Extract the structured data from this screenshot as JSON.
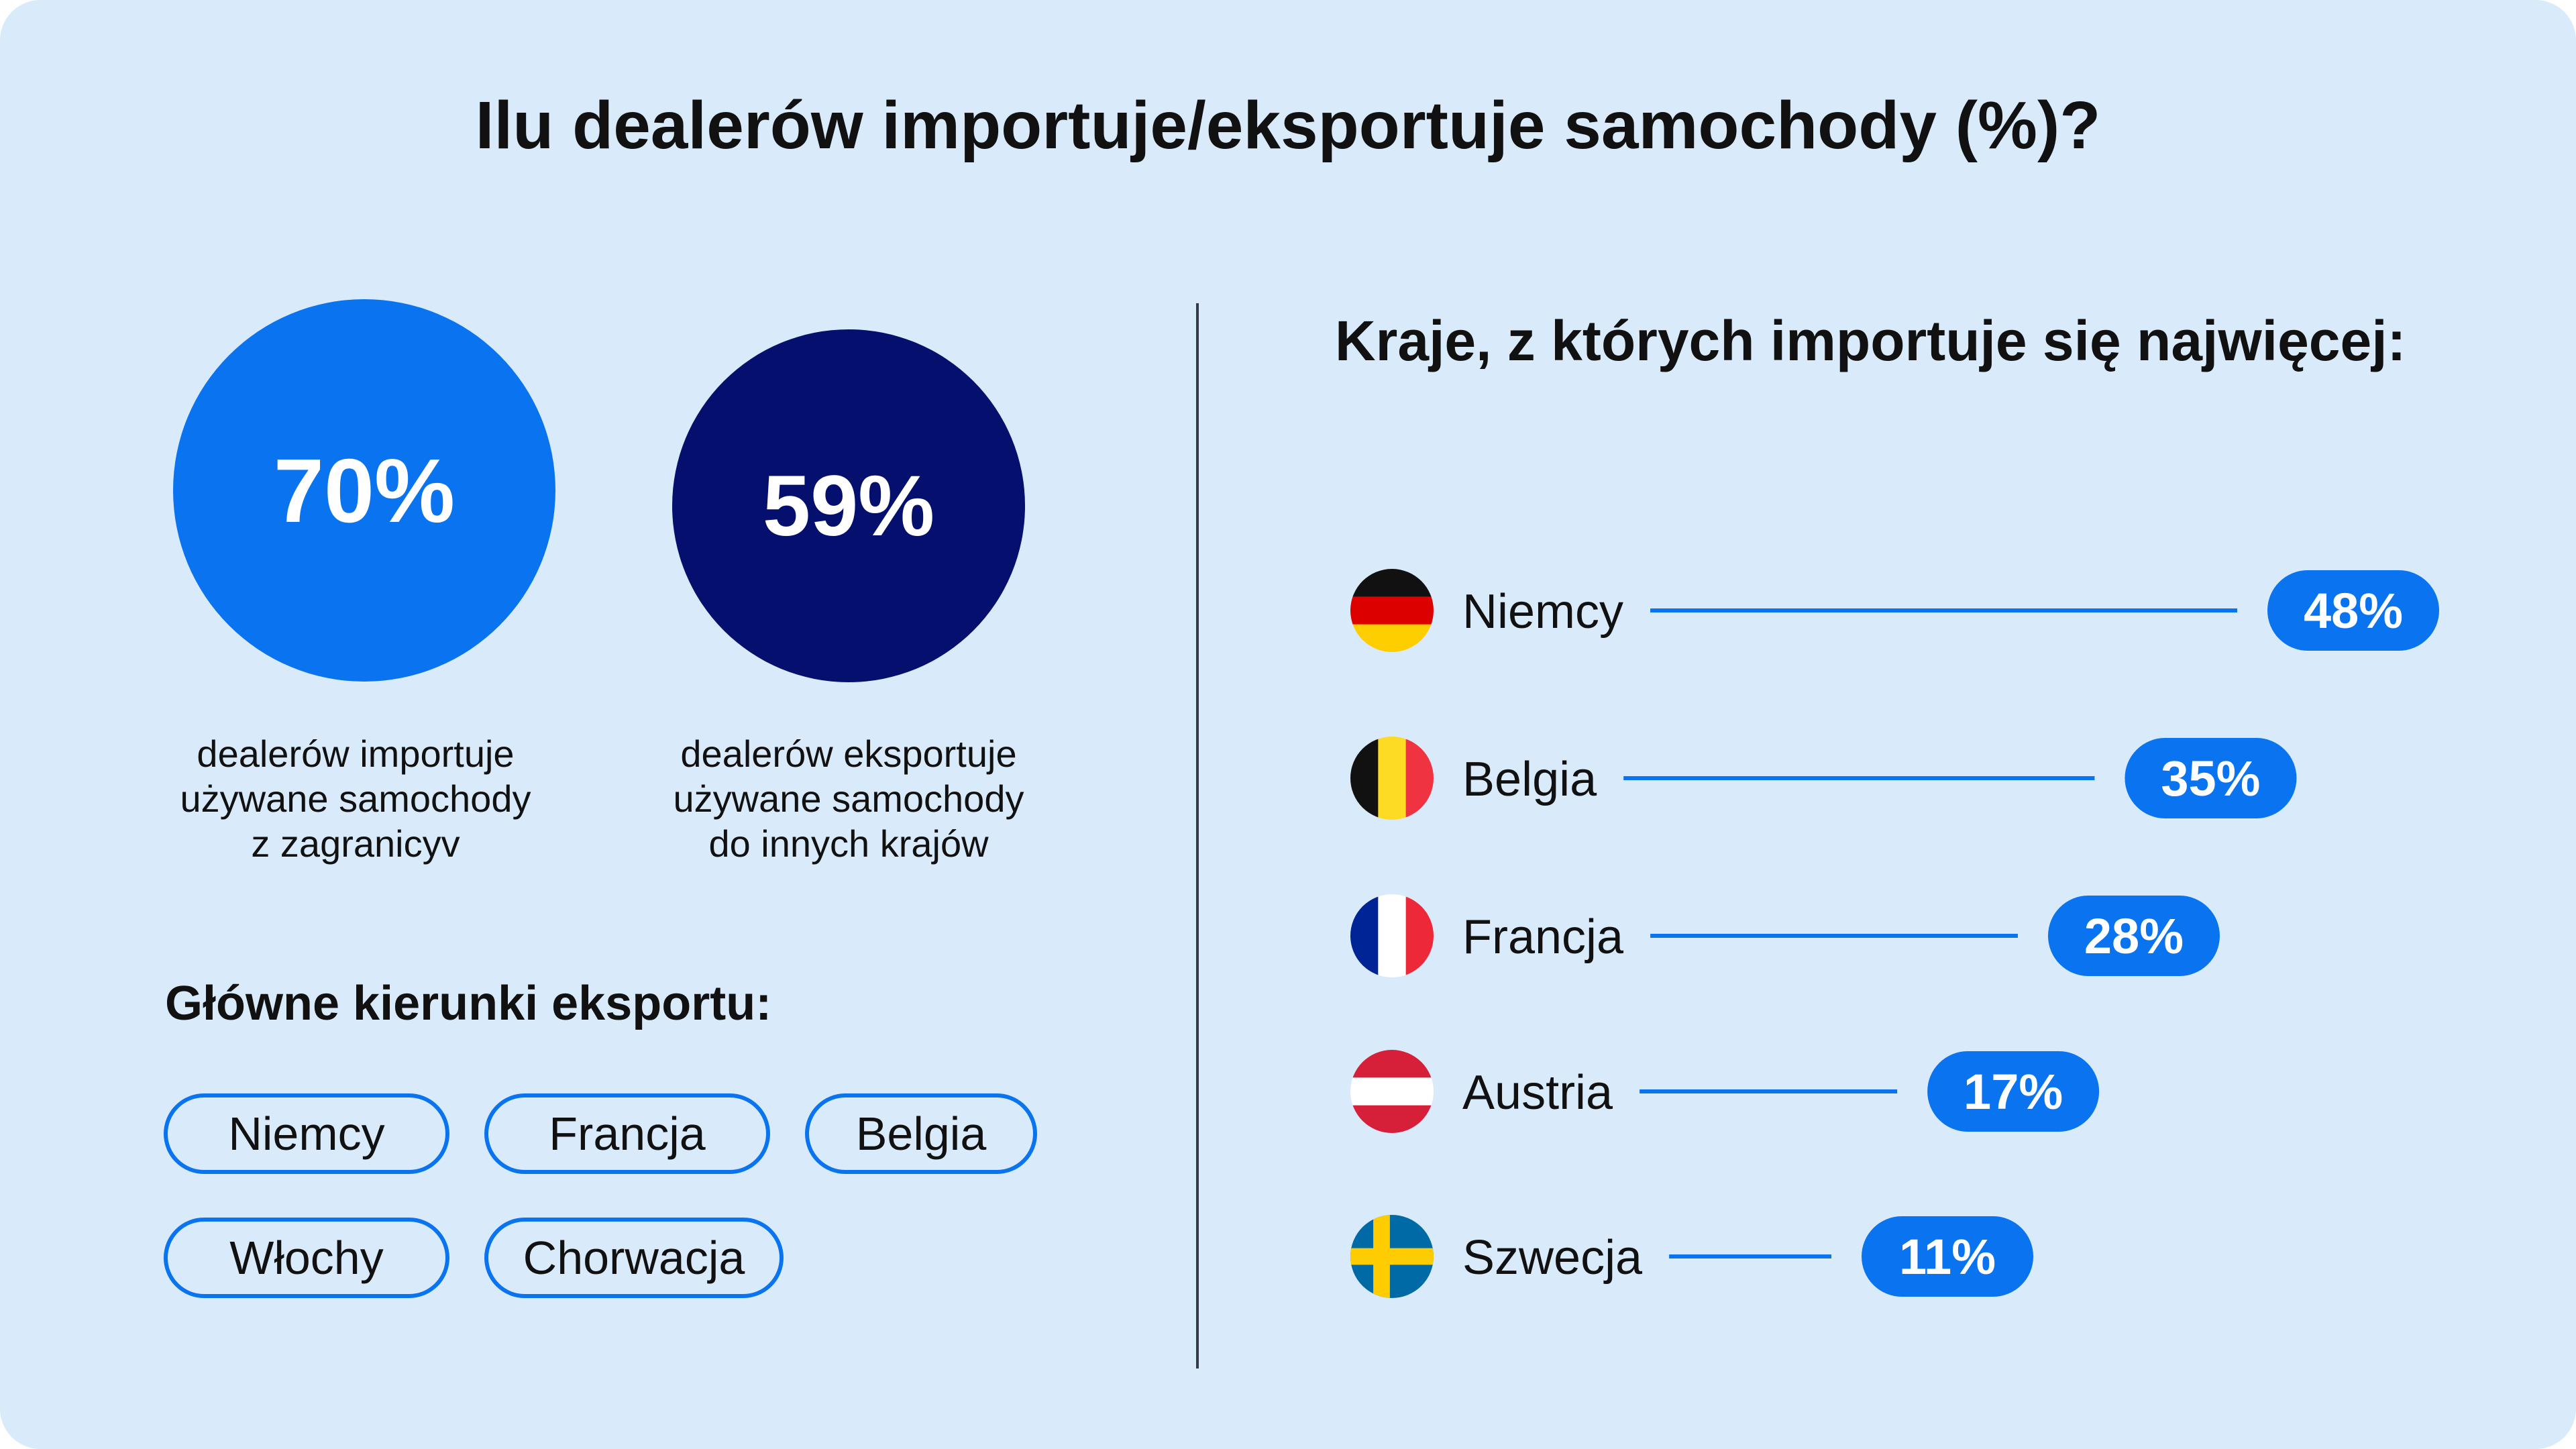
{
  "title": "Ilu dealerów importuje/eksportuje samochody (%)?",
  "stats": [
    {
      "value": "70%",
      "caption": [
        "dealerów importuje",
        "używane samochody",
        "z zagranicyv"
      ],
      "color": "#0a74f0"
    },
    {
      "value": "59%",
      "caption": [
        "dealerów eksportuje",
        "używane samochody",
        "do innych krajów"
      ],
      "color": "#040f6e"
    }
  ],
  "export_heading": "Główne kierunki eksportu:",
  "export_destinations": [
    "Niemcy",
    "Francja",
    "Belgia",
    "Włochy",
    "Chorwacja"
  ],
  "import_heading": "Kraje, z których importuje się najwięcej:",
  "chart_data": {
    "type": "bar",
    "orientation": "horizontal",
    "title": "Kraje, z których importuje się najwięcej:",
    "categories": [
      "Niemcy",
      "Belgia",
      "Francja",
      "Austria",
      "Szwecja"
    ],
    "values": [
      48,
      35,
      28,
      17,
      11
    ],
    "value_labels": [
      "48%",
      "35%",
      "28%",
      "17%",
      "11%"
    ],
    "unit": "%",
    "flags": [
      "flag-germany-icon",
      "flag-belgium-icon",
      "flag-france-icon",
      "flag-austria-icon",
      "flag-sweden-icon"
    ],
    "colors": {
      "bar": "#0a74f0",
      "label_text": "#ffffff"
    },
    "grid": false,
    "legend": false
  },
  "colors": {
    "background": "#d9ebfa",
    "accent": "#0a74f0",
    "dark": "#040f6e"
  }
}
